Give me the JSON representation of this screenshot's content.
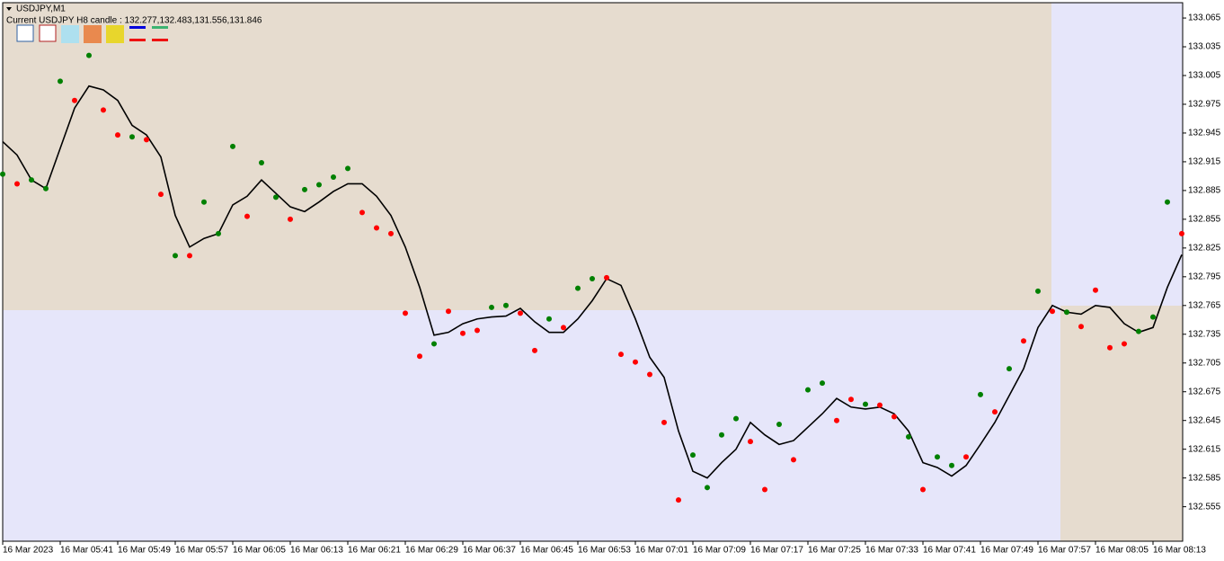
{
  "chart_data": {
    "type": "line",
    "title": "USDJPY,M1",
    "subtitle": "Current USDJPY H8 candle : 132.277,132.483,131.556,131.846",
    "categories": [
      "16 Mar 2023",
      null,
      null,
      null,
      "16 Mar 05:41",
      null,
      null,
      null,
      "16 Mar 05:49",
      null,
      null,
      null,
      "16 Mar 05:57",
      null,
      null,
      null,
      "16 Mar 06:05",
      null,
      null,
      null,
      "16 Mar 06:13",
      null,
      null,
      null,
      "16 Mar 06:21",
      null,
      null,
      null,
      "16 Mar 06:29",
      null,
      null,
      null,
      "16 Mar 06:37",
      null,
      null,
      null,
      "16 Mar 06:45",
      null,
      null,
      null,
      "16 Mar 06:53",
      null,
      null,
      null,
      "16 Mar 07:01",
      null,
      null,
      null,
      "16 Mar 07:09",
      null,
      null,
      null,
      "16 Mar 07:17",
      null,
      null,
      null,
      "16 Mar 07:25",
      null,
      null,
      null,
      "16 Mar 07:33",
      null,
      null,
      null,
      "16 Mar 07:41",
      null,
      null,
      null,
      "16 Mar 07:49",
      null,
      null,
      null,
      "16 Mar 07:57",
      null,
      null,
      null,
      "16 Mar 08:05",
      null,
      null,
      null,
      "16 Mar 08:13",
      null,
      null
    ],
    "series": [
      {
        "style": "line",
        "color": "#000000",
        "values": [
          132.936,
          132.922,
          132.896,
          132.887,
          132.929,
          132.971,
          132.994,
          132.99,
          132.979,
          132.953,
          132.943,
          132.92,
          132.859,
          132.826,
          132.835,
          132.84,
          132.87,
          132.879,
          132.896,
          132.882,
          132.868,
          132.863,
          132.873,
          132.884,
          132.892,
          132.892,
          132.879,
          132.859,
          132.826,
          132.784,
          132.734,
          132.737,
          132.746,
          132.751,
          132.753,
          132.754,
          132.762,
          132.748,
          132.737,
          132.737,
          132.751,
          132.77,
          132.793,
          132.786,
          132.751,
          132.711,
          132.69,
          132.634,
          132.592,
          132.585,
          132.601,
          132.615,
          132.643,
          132.63,
          132.62,
          132.624,
          132.638,
          132.652,
          132.668,
          132.659,
          132.657,
          132.659,
          132.652,
          132.634,
          132.601,
          132.596,
          132.587,
          132.598,
          132.62,
          132.643,
          132.671,
          132.699,
          132.742,
          132.765,
          132.758,
          132.756,
          132.765,
          132.763,
          132.746,
          132.737,
          132.742,
          132.784,
          132.818
        ]
      },
      {
        "style": "dots",
        "color": "#008000",
        "values": [
          132.902,
          null,
          132.896,
          132.887,
          132.999,
          null,
          133.026,
          null,
          null,
          132.941,
          null,
          null,
          132.817,
          null,
          132.873,
          132.84,
          132.931,
          null,
          132.914,
          132.878,
          null,
          132.886,
          132.891,
          132.899,
          132.908,
          null,
          null,
          null,
          null,
          null,
          132.725,
          null,
          null,
          null,
          132.763,
          132.765,
          null,
          null,
          132.751,
          null,
          132.783,
          132.793,
          null,
          null,
          null,
          null,
          null,
          null,
          132.609,
          132.575,
          132.63,
          132.647,
          null,
          null,
          132.641,
          null,
          132.677,
          132.684,
          null,
          null,
          132.662,
          null,
          null,
          132.628,
          null,
          132.607,
          132.598,
          null,
          132.672,
          null,
          132.699,
          null,
          132.78,
          null,
          132.758,
          null,
          null,
          null,
          null,
          132.738,
          132.753,
          132.873,
          null
        ]
      },
      {
        "style": "dots",
        "color": "#ff0000",
        "values": [
          null,
          132.892,
          null,
          null,
          null,
          132.979,
          null,
          132.969,
          132.943,
          null,
          132.938,
          132.881,
          null,
          132.817,
          null,
          null,
          null,
          132.858,
          null,
          null,
          132.855,
          null,
          null,
          null,
          null,
          132.862,
          132.846,
          132.84,
          132.757,
          132.712,
          null,
          132.759,
          132.736,
          132.739,
          null,
          null,
          132.757,
          132.718,
          null,
          132.742,
          null,
          null,
          132.794,
          132.714,
          132.706,
          132.693,
          132.643,
          132.562,
          null,
          null,
          null,
          null,
          132.623,
          132.573,
          null,
          132.604,
          null,
          null,
          132.645,
          132.667,
          null,
          132.661,
          132.649,
          null,
          132.573,
          null,
          null,
          132.607,
          null,
          132.654,
          null,
          132.728,
          null,
          132.759,
          null,
          132.743,
          132.781,
          132.721,
          132.725,
          null,
          null,
          null,
          132.84
        ]
      }
    ],
    "ylim": [
      132.519,
      133.081
    ],
    "yticks": [
      133.065,
      133.035,
      133.005,
      132.975,
      132.945,
      132.915,
      132.885,
      132.855,
      132.825,
      132.795,
      132.765,
      132.735,
      132.705,
      132.675,
      132.645,
      132.615,
      132.585,
      132.555
    ]
  }
}
